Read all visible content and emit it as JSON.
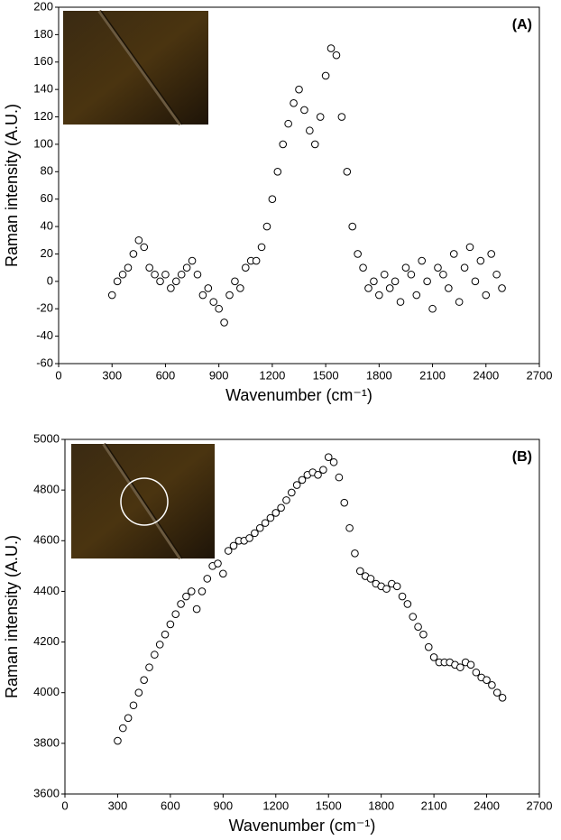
{
  "chart_data": [
    {
      "type": "scatter",
      "panel_label": "(A)",
      "xlabel": "Wavenumber (cm⁻¹)",
      "ylabel": "Raman intensity (A.U.)",
      "color": "#000000",
      "xlim": [
        0,
        2700
      ],
      "ylim": [
        -60,
        200
      ],
      "xticks": [
        0,
        300,
        600,
        900,
        1200,
        1500,
        1800,
        2100,
        2400,
        2700
      ],
      "yticks": [
        -60,
        -40,
        -20,
        0,
        20,
        40,
        60,
        80,
        100,
        120,
        140,
        160,
        180,
        200
      ],
      "x": [
        300,
        330,
        360,
        390,
        420,
        450,
        480,
        510,
        540,
        570,
        600,
        630,
        660,
        690,
        720,
        750,
        780,
        810,
        840,
        870,
        900,
        930,
        960,
        990,
        1020,
        1050,
        1080,
        1110,
        1140,
        1170,
        1200,
        1230,
        1260,
        1290,
        1320,
        1350,
        1380,
        1410,
        1440,
        1470,
        1500,
        1530,
        1560,
        1590,
        1620,
        1650,
        1680,
        1710,
        1740,
        1770,
        1800,
        1830,
        1860,
        1890,
        1920,
        1950,
        1980,
        2010,
        2040,
        2070,
        2100,
        2130,
        2160,
        2190,
        2220,
        2250,
        2280,
        2310,
        2340,
        2370,
        2400,
        2430,
        2460,
        2490
      ],
      "values": [
        -10,
        0,
        5,
        10,
        20,
        30,
        25,
        10,
        5,
        0,
        5,
        -5,
        0,
        5,
        10,
        15,
        5,
        -10,
        -5,
        -15,
        -20,
        -30,
        -10,
        0,
        -5,
        10,
        15,
        15,
        25,
        40,
        60,
        80,
        100,
        115,
        130,
        140,
        125,
        110,
        100,
        120,
        150,
        170,
        165,
        120,
        80,
        40,
        20,
        10,
        -5,
        0,
        -10,
        5,
        -5,
        0,
        -15,
        10,
        5,
        -10,
        15,
        0,
        -20,
        10,
        5,
        -5,
        20,
        -15,
        10,
        25,
        0,
        15,
        -10,
        20,
        5,
        -5
      ]
    },
    {
      "type": "scatter",
      "panel_label": "(B)",
      "xlabel": "Wavenumber (cm⁻¹)",
      "ylabel": "Raman intensity (A.U.)",
      "color": "#000000",
      "xlim": [
        0,
        2700
      ],
      "ylim": [
        3600,
        5000
      ],
      "xticks": [
        0,
        300,
        600,
        900,
        1200,
        1500,
        1800,
        2100,
        2400,
        2700
      ],
      "yticks": [
        3600,
        3800,
        4000,
        4200,
        4400,
        4600,
        4800,
        5000
      ],
      "x": [
        300,
        330,
        360,
        390,
        420,
        450,
        480,
        510,
        540,
        570,
        600,
        630,
        660,
        690,
        720,
        750,
        780,
        810,
        840,
        870,
        900,
        930,
        960,
        990,
        1020,
        1050,
        1080,
        1110,
        1140,
        1170,
        1200,
        1230,
        1260,
        1290,
        1320,
        1350,
        1380,
        1410,
        1440,
        1470,
        1500,
        1530,
        1560,
        1590,
        1620,
        1650,
        1680,
        1710,
        1740,
        1770,
        1800,
        1830,
        1860,
        1890,
        1920,
        1950,
        1980,
        2010,
        2040,
        2070,
        2100,
        2130,
        2160,
        2190,
        2220,
        2250,
        2280,
        2310,
        2340,
        2370,
        2400,
        2430,
        2460,
        2490
      ],
      "values": [
        3810,
        3860,
        3900,
        3950,
        4000,
        4050,
        4100,
        4150,
        4190,
        4230,
        4270,
        4310,
        4350,
        4380,
        4400,
        4330,
        4400,
        4450,
        4500,
        4510,
        4470,
        4560,
        4580,
        4600,
        4600,
        4610,
        4630,
        4650,
        4670,
        4690,
        4710,
        4730,
        4760,
        4790,
        4820,
        4840,
        4860,
        4870,
        4860,
        4880,
        4930,
        4910,
        4850,
        4750,
        4650,
        4550,
        4480,
        4460,
        4450,
        4430,
        4420,
        4410,
        4430,
        4420,
        4380,
        4350,
        4300,
        4260,
        4230,
        4180,
        4140,
        4120,
        4120,
        4120,
        4110,
        4100,
        4120,
        4110,
        4080,
        4060,
        4050,
        4030,
        4000,
        3980
      ]
    }
  ]
}
